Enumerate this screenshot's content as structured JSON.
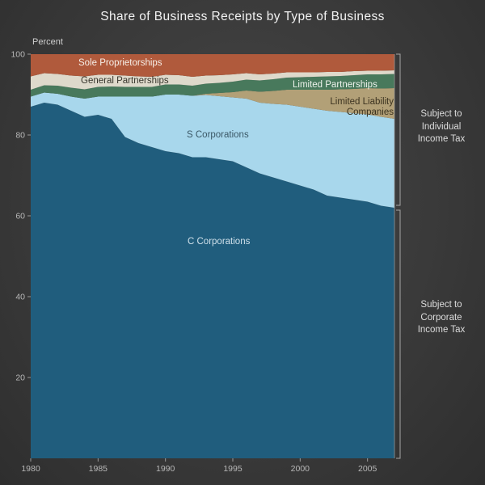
{
  "title": "Share of Business Receipts by Type of Business",
  "annotations": {
    "individual": "Subject to Individual Income Tax",
    "corporate": "Subject to Corporate Income Tax"
  },
  "chart_data": {
    "type": "area",
    "stacked": true,
    "title": "Share of Business Receipts by Type of Business",
    "xlabel": "",
    "ylabel": "Percent",
    "ylim": [
      0,
      100
    ],
    "grid": false,
    "legend": "inline-labels",
    "x": [
      1980,
      1981,
      1982,
      1983,
      1984,
      1985,
      1986,
      1987,
      1988,
      1989,
      1990,
      1991,
      1992,
      1993,
      1994,
      1995,
      1996,
      1997,
      1998,
      1999,
      2000,
      2001,
      2002,
      2003,
      2004,
      2005,
      2006,
      2007
    ],
    "xticks": [
      1980,
      1985,
      1990,
      1995,
      2000,
      2005
    ],
    "yticks": [
      20,
      40,
      60,
      80,
      100
    ],
    "series": [
      {
        "name": "C Corporations",
        "color": "#205d7d",
        "values": [
          87.0,
          88.0,
          87.5,
          86.0,
          84.5,
          85.0,
          84.0,
          79.5,
          78.0,
          77.0,
          76.0,
          75.5,
          74.5,
          74.5,
          74.0,
          73.5,
          72.0,
          70.5,
          69.5,
          68.5,
          67.5,
          66.5,
          65.0,
          64.5,
          64.0,
          63.5,
          62.5,
          62.0
        ]
      },
      {
        "name": "S Corporations",
        "color": "#a8d7ec",
        "values": [
          2.5,
          2.5,
          2.7,
          3.5,
          4.5,
          4.5,
          5.5,
          10.0,
          11.5,
          12.5,
          14.0,
          14.5,
          15.2,
          15.4,
          15.6,
          15.8,
          17.0,
          17.5,
          18.2,
          19.0,
          19.5,
          20.0,
          21.0,
          21.2,
          21.4,
          21.6,
          22.0,
          22.0
        ]
      },
      {
        "name": "Limited Liability Companies",
        "color": "#b2a077",
        "values": [
          0,
          0,
          0,
          0,
          0,
          0,
          0,
          0,
          0,
          0,
          0,
          0,
          0,
          0.3,
          0.8,
          1.3,
          2.0,
          2.7,
          3.2,
          3.7,
          4.2,
          4.7,
          5.2,
          5.6,
          6.0,
          6.5,
          7.0,
          7.6
        ]
      },
      {
        "name": "Limited Partnerships",
        "color": "#48795c",
        "values": [
          1.7,
          1.8,
          2.0,
          2.2,
          2.3,
          2.4,
          2.5,
          2.4,
          2.4,
          2.4,
          2.5,
          2.5,
          2.5,
          2.5,
          2.5,
          2.6,
          2.7,
          2.8,
          2.9,
          3.0,
          3.1,
          3.2,
          3.3,
          3.3,
          3.4,
          3.4,
          3.5,
          3.5
        ]
      },
      {
        "name": "General Partnerships",
        "color": "#ded9cb",
        "values": [
          3.3,
          3.0,
          2.9,
          3.0,
          3.2,
          3.0,
          2.9,
          2.8,
          2.6,
          2.5,
          2.4,
          2.3,
          2.2,
          2.0,
          1.9,
          1.8,
          1.6,
          1.5,
          1.4,
          1.3,
          1.2,
          1.1,
          1.1,
          1.0,
          1.0,
          0.9,
          0.9,
          0.9
        ]
      },
      {
        "name": "Sole Proprietorships",
        "color": "#b05a3c",
        "values": [
          5.5,
          4.7,
          4.9,
          5.3,
          5.5,
          5.1,
          5.1,
          5.3,
          5.5,
          5.6,
          5.1,
          5.2,
          5.6,
          5.3,
          5.2,
          5.0,
          4.7,
          5.0,
          4.8,
          4.5,
          4.5,
          4.5,
          4.4,
          4.4,
          4.2,
          4.1,
          4.1,
          4.0
        ]
      }
    ]
  }
}
